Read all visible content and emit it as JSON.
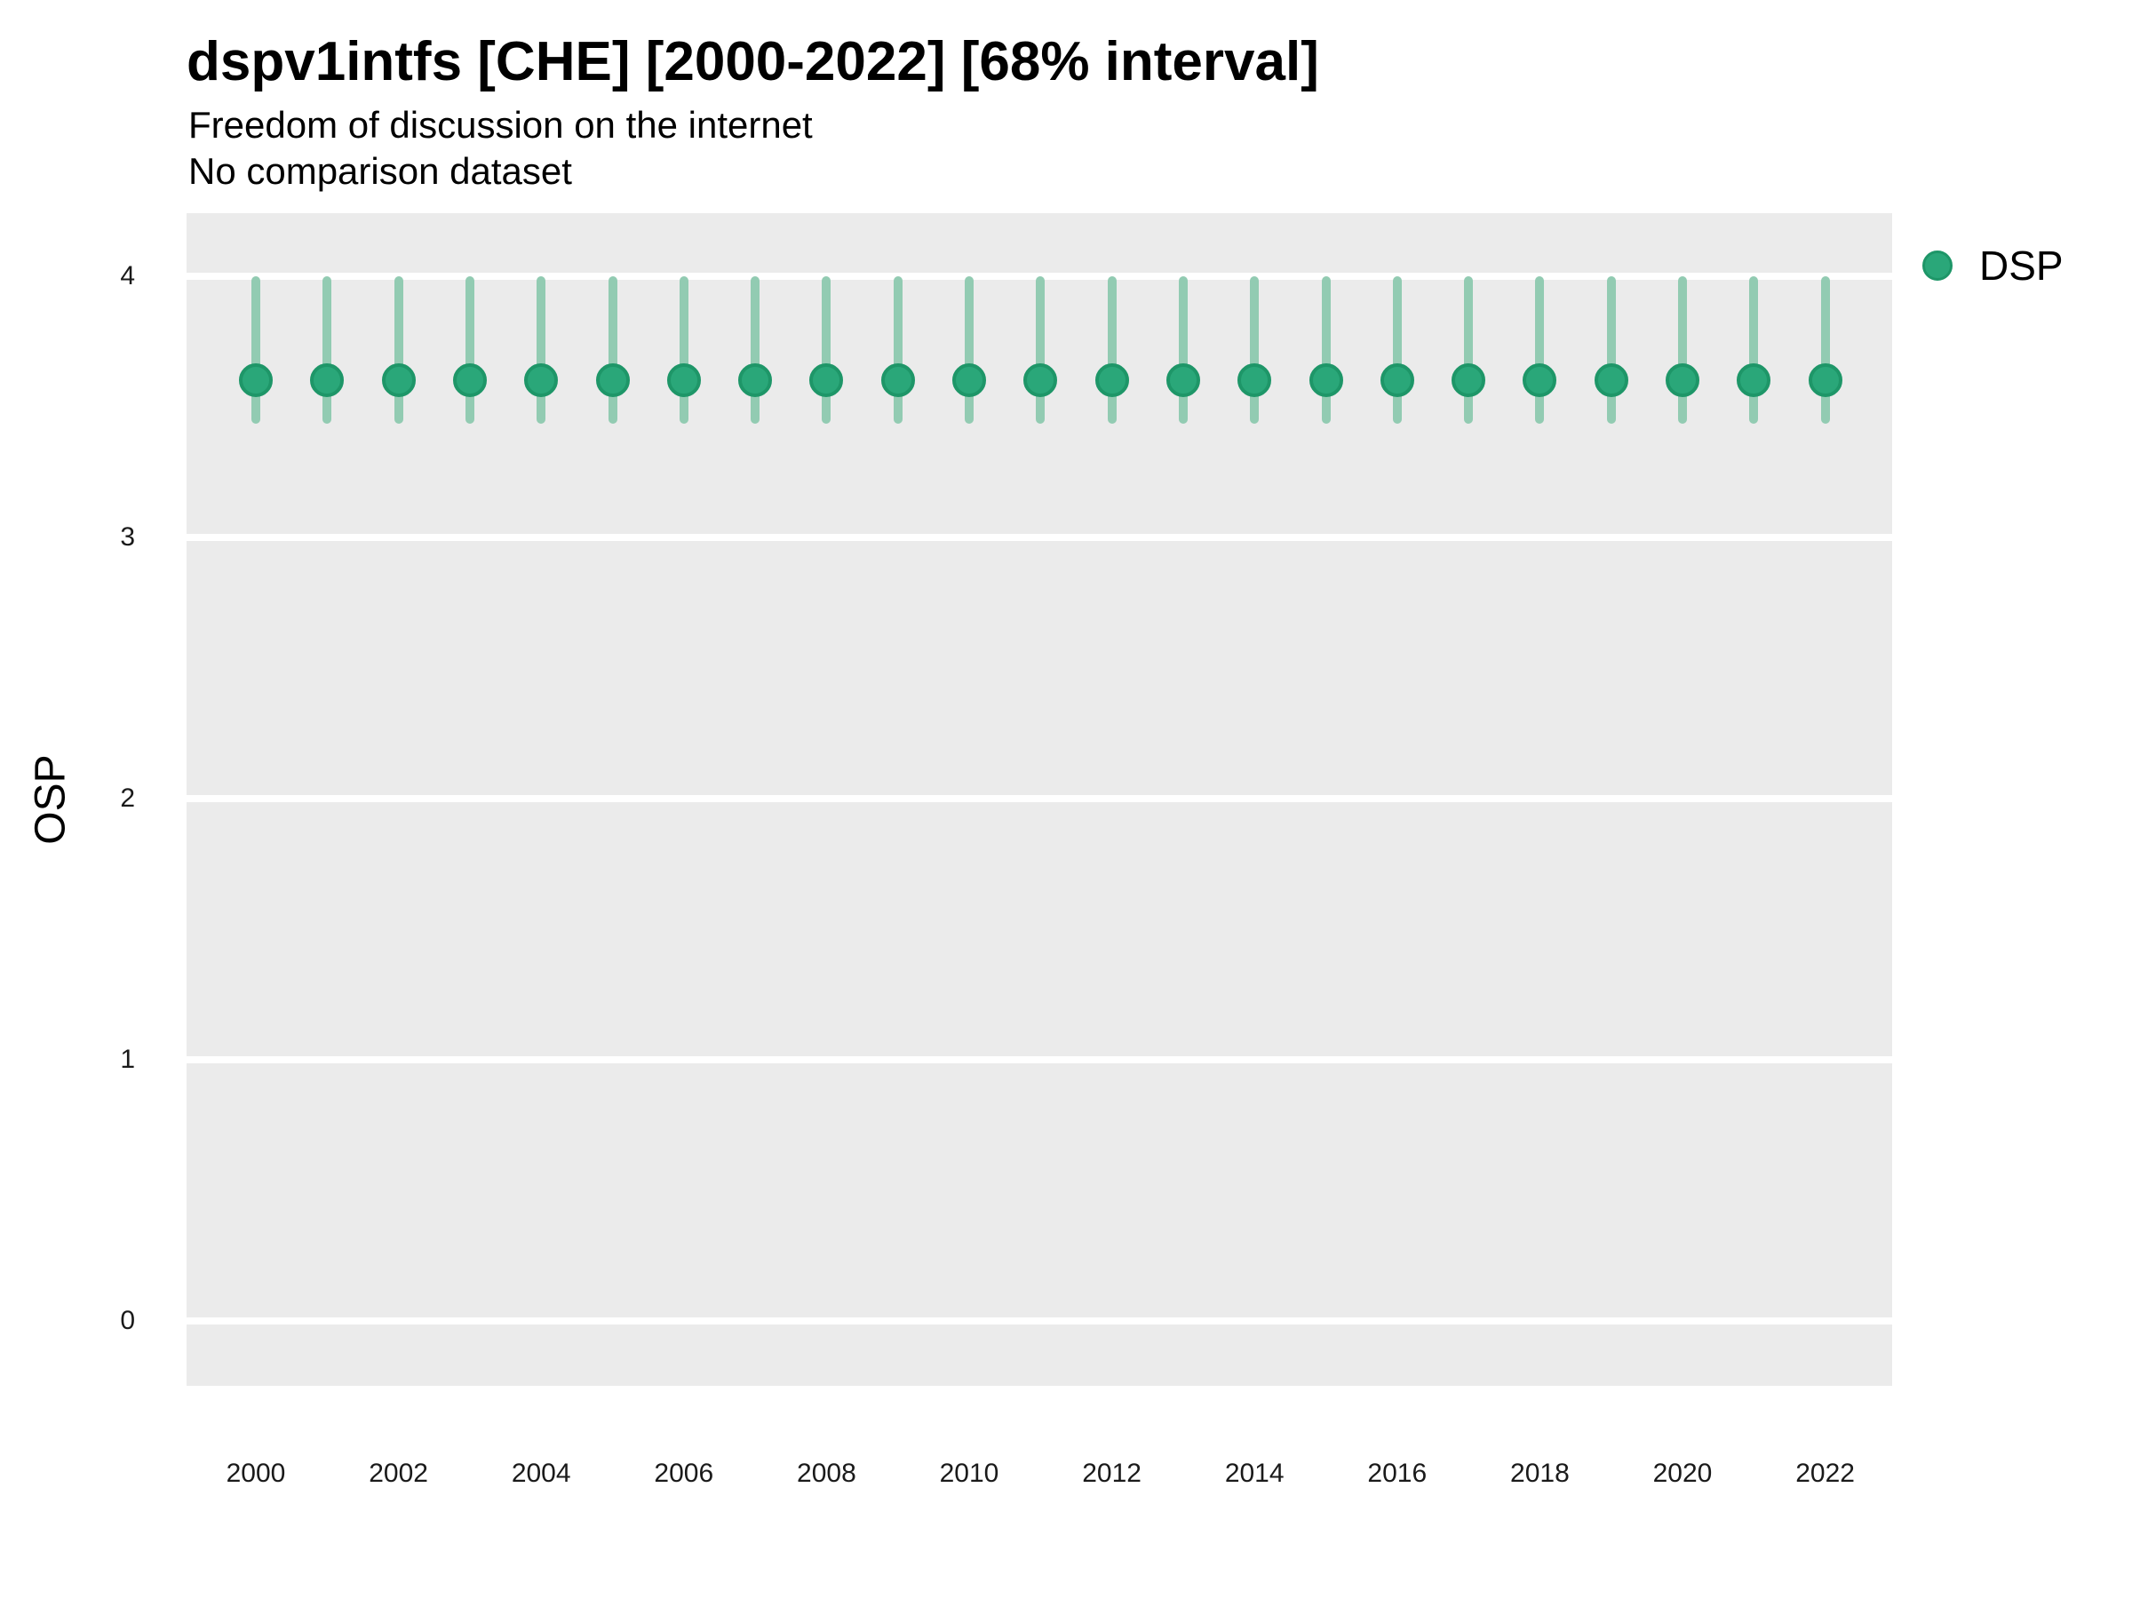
{
  "title": "dspv1intfs [CHE] [2000-2022] [68% interval]",
  "subtitle": [
    "Freedom of discussion on the internet",
    "No comparison dataset"
  ],
  "ylabel": "OSP",
  "legend": {
    "label": "DSP"
  },
  "colors": {
    "point_fill": "#2AA779",
    "point_stroke": "#1E9668",
    "interval_bar": "#92CBB2",
    "panel_background": "#EBEBEB",
    "gridline": "#FFFFFF",
    "text": "#000000"
  },
  "chart_data": {
    "type": "scatter",
    "title": "dspv1intfs [CHE] [2000-2022] [68% interval]",
    "subtitle": [
      "Freedom of discussion on the internet",
      "No comparison dataset"
    ],
    "xlabel": "",
    "ylabel": "OSP",
    "interval_label": "68% interval",
    "grid": "horizontal-major-only",
    "legend_position": "right",
    "xticks": [
      2000,
      2002,
      2004,
      2006,
      2008,
      2010,
      2012,
      2014,
      2016,
      2018,
      2020,
      2022
    ],
    "yticks": [
      0,
      1,
      2,
      3,
      4
    ],
    "ylim": [
      -0.25,
      4.24
    ],
    "xlim": [
      2000,
      2022
    ],
    "series": [
      {
        "name": "DSP",
        "x": [
          2000,
          2001,
          2002,
          2003,
          2004,
          2005,
          2006,
          2007,
          2008,
          2009,
          2010,
          2011,
          2012,
          2013,
          2014,
          2015,
          2016,
          2017,
          2018,
          2019,
          2020,
          2021,
          2022
        ],
        "y": [
          3.6,
          3.6,
          3.6,
          3.6,
          3.6,
          3.6,
          3.6,
          3.6,
          3.6,
          3.6,
          3.6,
          3.6,
          3.6,
          3.6,
          3.6,
          3.6,
          3.6,
          3.6,
          3.6,
          3.6,
          3.6,
          3.6,
          3.6
        ],
        "lo": [
          3.45,
          3.45,
          3.45,
          3.45,
          3.45,
          3.45,
          3.45,
          3.45,
          3.45,
          3.45,
          3.45,
          3.45,
          3.45,
          3.45,
          3.45,
          3.45,
          3.45,
          3.45,
          3.45,
          3.45,
          3.45,
          3.45,
          3.45
        ],
        "hi": [
          3.98,
          3.98,
          3.98,
          3.98,
          3.98,
          3.98,
          3.98,
          3.98,
          3.98,
          3.98,
          3.98,
          3.98,
          3.98,
          3.98,
          3.98,
          3.98,
          3.98,
          3.98,
          3.98,
          3.98,
          3.98,
          3.98,
          3.98
        ]
      }
    ]
  }
}
